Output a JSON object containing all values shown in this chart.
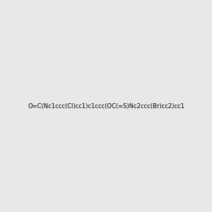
{
  "smiles": "O=C(Nc1ccc(Cl)cc1)c1ccc(OC(=S)Nc2ccc(Br)cc2)cc1",
  "background_color": "#e8e8e8",
  "title": "",
  "figsize": [
    3.0,
    3.0
  ],
  "dpi": 100,
  "atom_colors": {
    "N": "#0000ff",
    "O": "#ff0000",
    "S": "#ccaa00",
    "Cl": "#00cc00",
    "Br": "#cc6600",
    "C": "#000000",
    "H": "#000000"
  }
}
